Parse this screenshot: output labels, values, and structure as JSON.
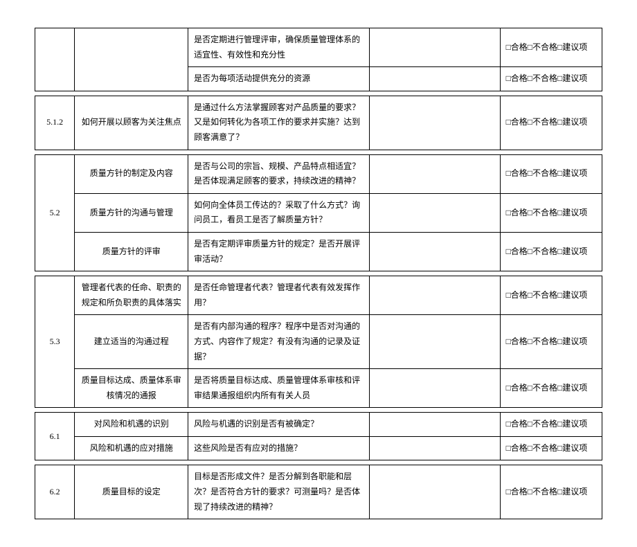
{
  "eval_label": "□合格□不合格□建议项",
  "groups": [
    {
      "num": "",
      "rows": [
        {
          "item": "",
          "desc": "是否定期进行管理评审，确保质量管理体系的适宜性、有效性和充分性"
        },
        {
          "item": "",
          "desc": "是否为每项活动提供充分的资源"
        }
      ]
    },
    {
      "num": "5.1.2",
      "rows": [
        {
          "item": "如何开展以顾客为关注焦点",
          "desc": "是通过什么方法掌握顾客对产品质量的要求？又是如何转化为各项工作的要求并实施？达到顾客满意了？"
        }
      ]
    },
    {
      "num": "5.2",
      "rows": [
        {
          "item": "质量方针的制定及内容",
          "desc": "是否与公司的宗旨、规模、产品特点相适宜？是否体现满足顾客的要求，持续改进的精神？"
        },
        {
          "item": "质量方针的沟通与管理",
          "desc": "如何向全体员工传达的？采取了什么方式？询问员工，看员工是否了解质量方针？"
        },
        {
          "item": "质量方针的评审",
          "desc": "是否有定期评审质量方针的规定？是否开展评审活动？"
        }
      ]
    },
    {
      "num": "5.3",
      "rows": [
        {
          "item": "管理者代表的任命、职责的规定和所负职责的具体落实",
          "desc": "是否任命管理者代表？管理者代表有效发挥作用？"
        },
        {
          "item": "建立适当的沟通过程",
          "desc": "是否有内部沟通的程序？程序中是否对沟通的方式、内容作了规定？有没有沟通的记录及证据？"
        },
        {
          "item": "质量目标达成、质量体系审核情况的通报",
          "desc": "是否将质量目标达成、质量管理体系审核和评审结果通报组织内所有有关人员"
        }
      ]
    },
    {
      "num": "6.1",
      "rows": [
        {
          "item": "对风险和机遇的识别",
          "desc": "风险与机遇的识别是否有被确定？"
        },
        {
          "item": "风险和机遇的应对措施",
          "desc": "这些风险是否有应对的措施？"
        }
      ]
    },
    {
      "num": "6.2",
      "rows": [
        {
          "item": "质量目标的设定",
          "desc": "目标是否形成文件？是否分解到各职能和层次？是否符合方针的要求？可测量吗？是否体现了持续改进的精神？"
        }
      ]
    }
  ]
}
